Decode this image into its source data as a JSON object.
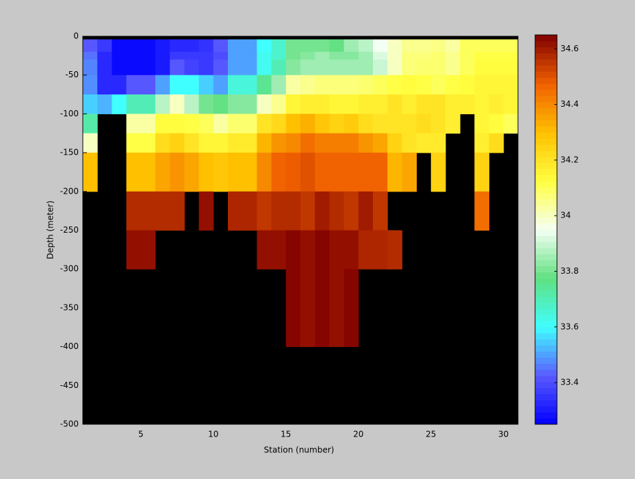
{
  "chart_data": {
    "type": "heatmap",
    "xlabel": "Station (number)",
    "ylabel": "Depth (meter)",
    "xlim": [
      1,
      31
    ],
    "ylim": [
      -500,
      0
    ],
    "xticks": [
      5,
      10,
      15,
      20,
      25,
      30
    ],
    "yticks": [
      0,
      -50,
      -100,
      -150,
      -200,
      -250,
      -300,
      -350,
      -400,
      -450,
      -500
    ],
    "x_edges": [
      1,
      2,
      3,
      4,
      5,
      6,
      7,
      8,
      9,
      10,
      11,
      12,
      13,
      14,
      15,
      16,
      17,
      18,
      19,
      20,
      21,
      22,
      23,
      24,
      25,
      26,
      27,
      28,
      29,
      30,
      31
    ],
    "y_edges": [
      -4,
      -20,
      -30,
      -50,
      -75,
      -100,
      -125,
      -150,
      -200,
      -250,
      -300,
      -400,
      -500
    ],
    "background": "#000000",
    "clim": [
      33.25,
      34.65
    ],
    "colorbar_ticks": [
      33.4,
      33.6,
      33.8,
      34,
      34.2,
      34.4,
      34.6
    ],
    "colormap": [
      "#0000ff",
      "#5a5aff",
      "#40ffff",
      "#60e080",
      "#f4fff4",
      "#ffff40",
      "#ffc000",
      "#f06000",
      "#800000"
    ],
    "z": [
      [
        33.42,
        33.36,
        33.27,
        33.27,
        33.27,
        33.3,
        33.33,
        33.33,
        33.35,
        33.42,
        33.5,
        33.5,
        33.6,
        33.67,
        33.8,
        33.8,
        33.8,
        33.78,
        33.85,
        33.88,
        33.95,
        34.0,
        34.05,
        34.05,
        34.06,
        34.03,
        34.1,
        34.1,
        34.1,
        34.1
      ],
      [
        33.45,
        33.33,
        33.27,
        33.27,
        33.27,
        33.3,
        33.36,
        33.36,
        33.36,
        33.4,
        33.5,
        33.5,
        33.62,
        33.67,
        33.8,
        33.82,
        33.85,
        33.82,
        33.82,
        33.85,
        33.92,
        34.0,
        34.07,
        34.07,
        34.08,
        34.05,
        34.1,
        34.12,
        34.12,
        34.12
      ],
      [
        33.47,
        33.33,
        33.27,
        33.27,
        33.27,
        33.3,
        33.42,
        33.38,
        33.36,
        33.42,
        33.5,
        33.5,
        33.62,
        33.7,
        33.82,
        33.85,
        33.85,
        33.85,
        33.85,
        33.85,
        33.9,
        34.0,
        34.07,
        34.08,
        34.08,
        34.05,
        34.1,
        34.13,
        34.13,
        34.13
      ],
      [
        33.48,
        33.33,
        33.33,
        33.42,
        33.42,
        33.5,
        33.6,
        33.6,
        33.55,
        33.5,
        33.65,
        33.65,
        33.75,
        33.85,
        34.03,
        34.05,
        34.07,
        34.07,
        34.07,
        34.08,
        34.1,
        34.12,
        34.13,
        34.12,
        34.1,
        34.12,
        34.13,
        34.15,
        34.15,
        34.15
      ],
      [
        33.55,
        33.52,
        33.6,
        33.7,
        33.7,
        33.88,
        34.0,
        33.88,
        33.8,
        33.78,
        33.82,
        33.82,
        34.0,
        34.05,
        34.15,
        34.17,
        34.17,
        34.15,
        34.15,
        34.17,
        34.17,
        34.2,
        34.17,
        34.2,
        34.2,
        34.17,
        34.17,
        34.15,
        34.17,
        34.15
      ],
      [
        33.72,
        null,
        null,
        34.03,
        34.03,
        34.13,
        34.13,
        34.12,
        34.1,
        34.03,
        34.08,
        34.08,
        34.2,
        34.23,
        34.3,
        34.33,
        34.28,
        34.25,
        34.27,
        34.22,
        34.2,
        34.2,
        34.2,
        34.22,
        34.2,
        34.17,
        null,
        34.15,
        34.13,
        34.1
      ],
      [
        34.0,
        null,
        null,
        34.12,
        34.12,
        34.22,
        34.25,
        34.2,
        34.15,
        34.15,
        34.18,
        34.18,
        34.32,
        34.38,
        34.4,
        34.45,
        34.42,
        34.42,
        34.42,
        34.38,
        34.35,
        34.25,
        34.2,
        34.18,
        34.18,
        null,
        null,
        34.17,
        34.22,
        null
      ],
      [
        34.3,
        null,
        null,
        34.3,
        34.3,
        34.35,
        34.38,
        34.35,
        34.3,
        34.28,
        34.3,
        34.3,
        34.4,
        34.47,
        34.48,
        34.5,
        34.47,
        34.47,
        34.47,
        34.47,
        34.47,
        34.32,
        34.35,
        null,
        34.25,
        null,
        null,
        34.25,
        null,
        null
      ],
      [
        null,
        null,
        null,
        34.57,
        34.57,
        34.57,
        34.57,
        null,
        34.62,
        null,
        34.58,
        34.58,
        34.55,
        34.57,
        34.57,
        34.55,
        34.6,
        34.57,
        34.55,
        34.6,
        34.55,
        null,
        null,
        null,
        null,
        null,
        null,
        34.45,
        null,
        null
      ],
      [
        null,
        null,
        null,
        34.62,
        34.62,
        null,
        null,
        null,
        null,
        null,
        null,
        null,
        34.62,
        34.62,
        34.64,
        34.62,
        34.64,
        34.62,
        34.62,
        34.58,
        34.58,
        34.57,
        null,
        null,
        null,
        null,
        null,
        null,
        null,
        null
      ],
      [
        null,
        null,
        null,
        null,
        null,
        null,
        null,
        null,
        null,
        null,
        null,
        null,
        null,
        null,
        34.64,
        34.62,
        34.64,
        34.62,
        34.64,
        null,
        null,
        null,
        null,
        null,
        null,
        null,
        null,
        null,
        null,
        null
      ],
      [
        null,
        null,
        null,
        null,
        null,
        null,
        null,
        null,
        null,
        null,
        null,
        null,
        null,
        null,
        null,
        null,
        null,
        null,
        null,
        null,
        null,
        null,
        null,
        null,
        null,
        null,
        null,
        null,
        null,
        null
      ]
    ]
  }
}
